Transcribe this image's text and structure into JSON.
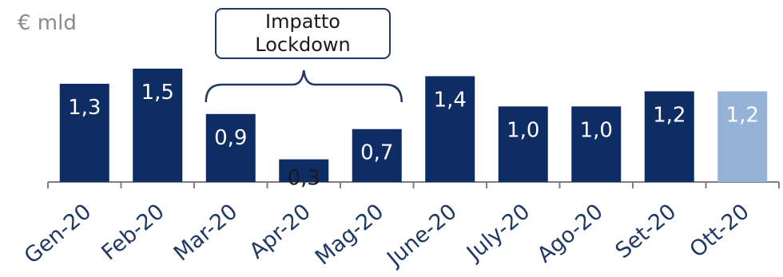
{
  "chart_data": {
    "type": "bar",
    "unit_label": "€ mld",
    "categories": [
      "Gen-20",
      "Feb-20",
      "Mar-20",
      "Apr-20",
      "Mag-20",
      "June-20",
      "July-20",
      "Ago-20",
      "Set-20",
      "Ott-20"
    ],
    "values": [
      1.3,
      1.5,
      0.9,
      0.3,
      0.7,
      1.4,
      1.0,
      1.0,
      1.2,
      1.2
    ],
    "data_labels": [
      "1,3",
      "1,5",
      "0,9",
      "0,3",
      "0,7",
      "1,4",
      "1,0",
      "1,0",
      "1,2",
      "1,2"
    ],
    "colors": [
      "#0d2d64",
      "#0d2d64",
      "#0d2d64",
      "#0d2d64",
      "#0d2d64",
      "#0d2d64",
      "#0d2d64",
      "#0d2d64",
      "#0d2d64",
      "#95b3d7"
    ],
    "annotation": {
      "line1": "Impatto",
      "line2": "Lockdown",
      "span_categories": [
        "Mar-20",
        "Mag-20"
      ]
    },
    "ylim": [
      0,
      1.5
    ],
    "grid": false,
    "legend": "none"
  }
}
